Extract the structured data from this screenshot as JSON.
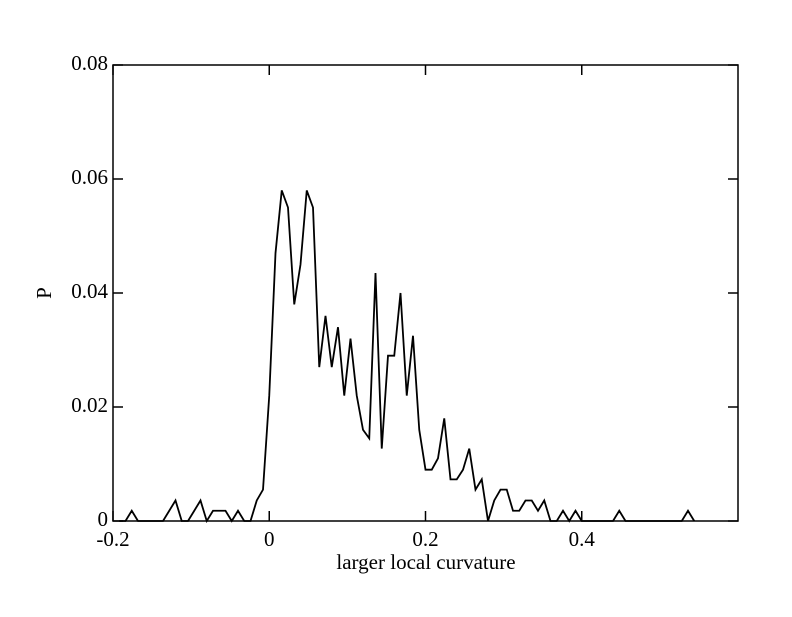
{
  "chart_data": {
    "type": "line",
    "xlabel": "larger local curvature",
    "ylabel": "P",
    "x": [
      -0.192,
      -0.184,
      -0.176,
      -0.168,
      -0.16,
      -0.152,
      -0.144,
      -0.136,
      -0.128,
      -0.12,
      -0.112,
      -0.104,
      -0.096,
      -0.088,
      -0.08,
      -0.072,
      -0.064,
      -0.056,
      -0.048,
      -0.04,
      -0.032,
      -0.024,
      -0.016,
      -0.008,
      0,
      0.008,
      0.016,
      0.024,
      0.032,
      0.04,
      0.048,
      0.056,
      0.064,
      0.072,
      0.08,
      0.088,
      0.096,
      0.104,
      0.112,
      0.12,
      0.128,
      0.136,
      0.144,
      0.152,
      0.16,
      0.168,
      0.176,
      0.184,
      0.192,
      0.2,
      0.208,
      0.216,
      0.224,
      0.232,
      0.24,
      0.248,
      0.256,
      0.264,
      0.272,
      0.28,
      0.288,
      0.296,
      0.304,
      0.312,
      0.32,
      0.328,
      0.336,
      0.344,
      0.352,
      0.36,
      0.368,
      0.376,
      0.384,
      0.392,
      0.4,
      0.408,
      0.416,
      0.424,
      0.432,
      0.44,
      0.448,
      0.456,
      0.464,
      0.472,
      0.48,
      0.488,
      0.496,
      0.504,
      0.512,
      0.52,
      0.528,
      0.536,
      0.544
    ],
    "series": [
      {
        "color": "#000000",
        "values": [
          0,
          0,
          0.0018,
          0,
          0,
          0,
          0,
          0,
          0.0018,
          0.0036,
          0,
          0,
          0.0018,
          0.0036,
          0,
          0.0018,
          0.0018,
          0.0018,
          0,
          0.0018,
          0,
          0,
          0.0036,
          0.0055,
          0.022,
          0.047,
          0.058,
          0.055,
          0.038,
          0.045,
          0.058,
          0.055,
          0.027,
          0.036,
          0.027,
          0.034,
          0.022,
          0.032,
          0.022,
          0.016,
          0.0145,
          0.0435,
          0.0127,
          0.029,
          0.029,
          0.04,
          0.022,
          0.0325,
          0.016,
          0.009,
          0.009,
          0.011,
          0.018,
          0.0073,
          0.0073,
          0.009,
          0.0127,
          0.0055,
          0.0073,
          0,
          0.0036,
          0.0055,
          0.0055,
          0.0018,
          0.0018,
          0.0036,
          0.0036,
          0.0018,
          0.0036,
          0,
          0,
          0.0018,
          0,
          0.0018,
          0,
          0,
          0,
          0,
          0,
          0,
          0.0018,
          0,
          0,
          0,
          0,
          0,
          0,
          0,
          0,
          0,
          0,
          0.0018,
          0
        ]
      }
    ],
    "xlim": [
      -0.2,
      0.6
    ],
    "ylim": [
      0,
      0.08
    ],
    "xticks": [
      -0.2,
      0,
      0.2,
      0.4
    ],
    "yticks": [
      0,
      0.02,
      0.04,
      0.06,
      0.08
    ]
  }
}
